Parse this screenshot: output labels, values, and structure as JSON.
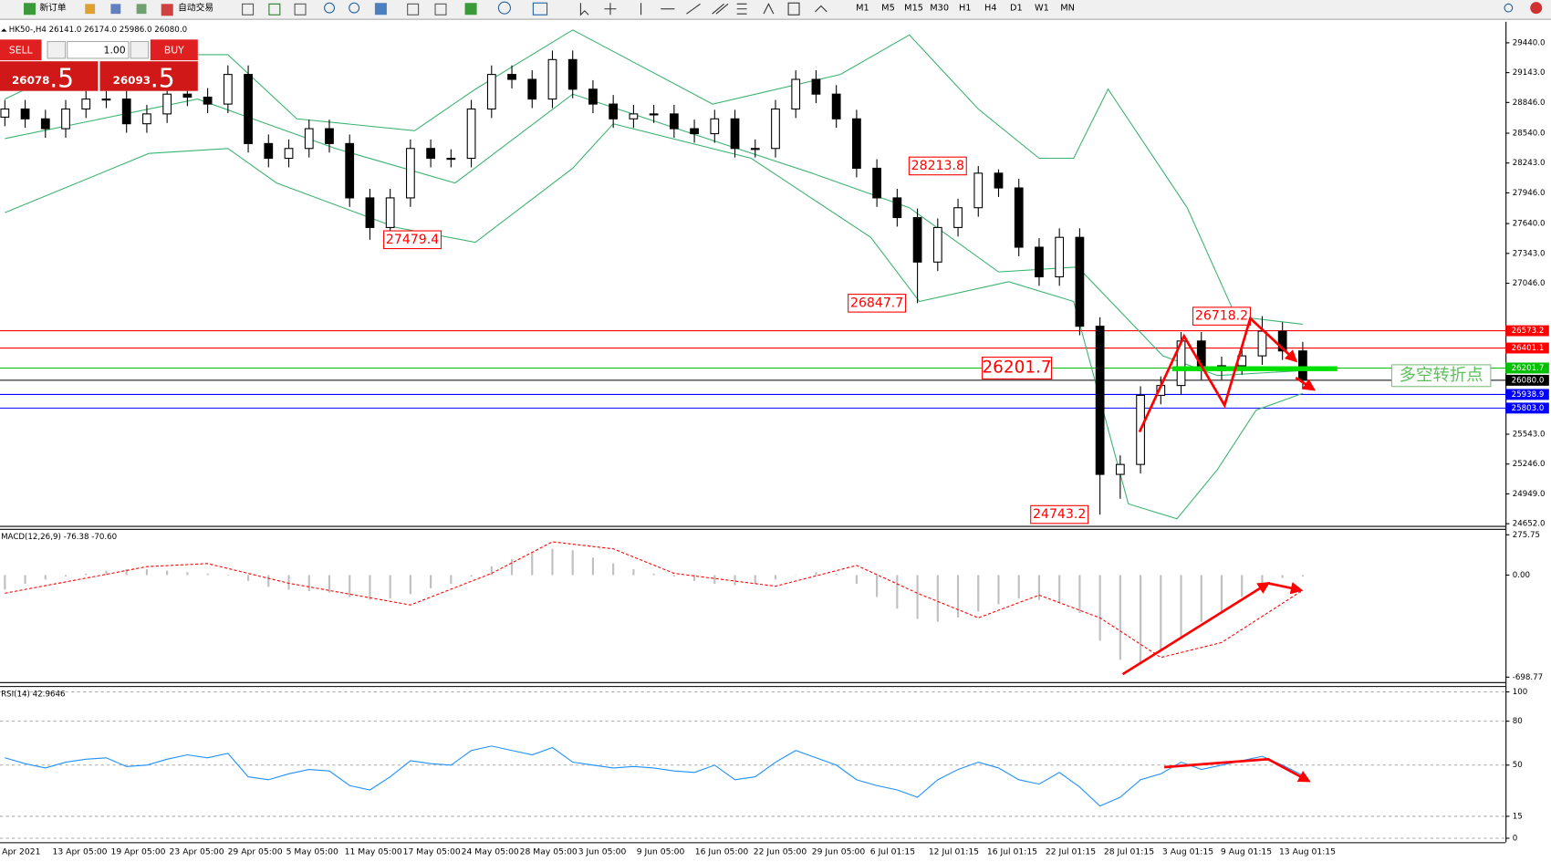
{
  "toolbar": {
    "new_order": "新订单",
    "auto_trading": "自动交易",
    "timeframes": [
      "M1",
      "M5",
      "M15",
      "M30",
      "H1",
      "H4",
      "D1",
      "W1",
      "MN"
    ]
  },
  "trade_panel": {
    "sell": "SELL",
    "lots": "1.00",
    "buy": "BUY",
    "sell_price": "26078",
    "sell_pips": ".5",
    "buy_price": "26093",
    "buy_pips": ".5"
  },
  "chart_data": [
    {
      "type": "candlestick",
      "title": "HK50-,H4  26141.0 26174.0 25986.0 26080.0",
      "up_color": "#ffffff",
      "down_color": "#000000",
      "open": [
        28700,
        28781,
        28683,
        28585,
        28781,
        28880,
        28880,
        28634,
        28732,
        28929,
        28899,
        28830,
        29125,
        28437,
        28290,
        28388,
        28585,
        28437,
        27896,
        27601,
        27896,
        28388,
        28290,
        28290,
        28781,
        29125,
        29076,
        28880,
        29273,
        28978,
        28830,
        28683,
        28732,
        28732,
        28585,
        28535,
        28683,
        28388,
        28388,
        28781,
        29076,
        28929,
        28683,
        28191,
        27896,
        27700,
        27257,
        27601,
        27798,
        28142,
        27995,
        27405,
        27110,
        27503,
        26618,
        25143,
        25242,
        25930,
        26028,
        26471,
        26176,
        26225,
        26323,
        26569,
        26372
      ],
      "high": [
        28871,
        28871,
        28773,
        28871,
        28970,
        28970,
        28970,
        28822,
        29019,
        29019,
        28989,
        29215,
        29215,
        28527,
        28478,
        28675,
        28675,
        28527,
        27986,
        27986,
        28478,
        28478,
        28380,
        28871,
        29215,
        29215,
        29166,
        29363,
        29363,
        29068,
        28920,
        28822,
        28822,
        28822,
        28675,
        28773,
        28773,
        28478,
        28871,
        29166,
        29166,
        29019,
        28773,
        28281,
        27986,
        27790,
        27691,
        27888,
        28213.8,
        28180,
        28085,
        27495,
        27593,
        27593,
        26708,
        25332,
        26020,
        26118,
        26561,
        26561,
        26315,
        26413,
        26718.2,
        26659,
        26462
      ],
      "low": [
        28610,
        28593,
        28495,
        28495,
        28691,
        28790,
        28544,
        28544,
        28642,
        28809,
        28740,
        28740,
        28347,
        28200,
        28200,
        28298,
        28347,
        27806,
        27479.4,
        27511,
        27806,
        28200,
        28200,
        28200,
        28691,
        28986,
        28790,
        28790,
        28888,
        28740,
        28593,
        28593,
        28642,
        28495,
        28445,
        28445,
        28298,
        28298,
        28298,
        28691,
        28839,
        28593,
        28101,
        27806,
        27610,
        26847.7,
        27167,
        27511,
        27708,
        27905,
        27315,
        27020,
        27020,
        26528,
        24743.2,
        24900,
        25152,
        25840,
        25938,
        26086,
        26086,
        26135,
        26233,
        26282,
        25990
      ],
      "close": [
        28781,
        28683,
        28585,
        28781,
        28880,
        28880,
        28634,
        28732,
        28929,
        28899,
        28830,
        29125,
        28437,
        28290,
        28388,
        28585,
        28437,
        27896,
        27601,
        27896,
        28388,
        28290,
        28290,
        28781,
        29125,
        29076,
        28880,
        29273,
        28978,
        28830,
        28683,
        28732,
        28732,
        28585,
        28535,
        28683,
        28388,
        28388,
        28781,
        29076,
        28929,
        28683,
        28191,
        27896,
        27700,
        27257,
        27601,
        27798,
        28142,
        27995,
        27405,
        27110,
        27503,
        26618,
        25143,
        25242,
        25930,
        26028,
        26471,
        26176,
        26225,
        26323,
        26569,
        26372,
        26080
      ],
      "overlays": [
        {
          "color": "#3cb371",
          "x": [
            0,
            4.6,
            11,
            14.4,
            20.2,
            23.2,
            28,
            34.9,
            41.2,
            44.6,
            48,
            51,
            52.7,
            54.4,
            58.3,
            60.7,
            64
          ],
          "values": [
            28880,
            29322,
            29322,
            28683,
            28565,
            28978,
            29568,
            28830,
            29125,
            29519,
            28781,
            28290,
            28290,
            28978,
            27798,
            26717,
            26638
          ]
        },
        {
          "color": "#3cb371",
          "x": [
            0,
            9.5,
            16.3,
            22.2,
            28,
            33.9,
            39.8,
            44.6,
            49,
            52.9,
            57.1,
            59.8,
            64
          ],
          "values": [
            28486,
            28880,
            28388,
            28044,
            28929,
            28535,
            28142,
            27798,
            27159,
            27208,
            26323,
            26127,
            26176
          ]
        },
        {
          "color": "#3cb371",
          "x": [
            0,
            7.1,
            11,
            13.4,
            19.3,
            23.2,
            28,
            30,
            36.8,
            42.7,
            45.1,
            49.5,
            52.7,
            55.4,
            57.8,
            59.8,
            61.7,
            64
          ],
          "values": [
            27749,
            28339,
            28388,
            28044,
            27601,
            27454,
            28191,
            28634,
            28290,
            27503,
            26864,
            27061,
            26864,
            24849,
            24701,
            25193,
            25783,
            25950
          ]
        }
      ],
      "levels": [
        {
          "value": 26573.2,
          "color": "#ff0000"
        },
        {
          "value": 26401.1,
          "color": "#ff0000"
        },
        {
          "value": 26201.7,
          "color": "#00c000"
        },
        {
          "value": 26080.0,
          "label": "26080.0",
          "color": "#000000"
        },
        {
          "value": 25938.9,
          "color": "#0000ff"
        },
        {
          "value": 25803.0,
          "label": "25803.0",
          "color": "#0000ff"
        }
      ],
      "annotations": [
        27479.4,
        28213.8,
        26847.7,
        26718.2,
        24743.2
      ],
      "callouts": [
        26201.7
      ],
      "note": "多空转折点",
      "xlim": [
        -0.24,
        73.9
      ],
      "ylim": [
        24630,
        29630
      ],
      "yticks": [
        {
          "value": 29440,
          "label": "29440.0"
        },
        {
          "value": 29143,
          "label": "29143.0"
        },
        {
          "value": 28846,
          "label": "28846.0"
        },
        {
          "value": 28540,
          "label": "28540.0"
        },
        {
          "value": 28243,
          "label": "28243.0"
        },
        {
          "value": 27946,
          "label": "27946.0"
        },
        {
          "value": 27640,
          "label": "27640.0"
        },
        {
          "value": 27343,
          "label": "27343.0"
        },
        {
          "value": 27046,
          "label": "27046.0"
        },
        {
          "value": 25543,
          "label": "25543.0"
        },
        {
          "value": 25246,
          "label": "25246.0"
        },
        {
          "value": 24949,
          "label": "24949.0"
        },
        {
          "value": 24652,
          "label": "24652.0"
        }
      ]
    },
    {
      "type": "macd",
      "title": "MACD(12,26,9) -76.38 -70.60",
      "color": "#c0c0c0",
      "values": [
        -100,
        -60,
        -30,
        -10,
        10,
        30,
        40,
        40,
        30,
        20,
        10,
        0,
        -40,
        -80,
        -100,
        -110,
        -120,
        -150,
        -170,
        -160,
        -130,
        -90,
        -60,
        -10,
        60,
        110,
        150,
        180,
        170,
        120,
        80,
        40,
        10,
        -10,
        -40,
        -60,
        -70,
        -60,
        -30,
        0,
        20,
        10,
        -60,
        -150,
        -230,
        -300,
        -320,
        -290,
        -250,
        -200,
        -160,
        -170,
        -190,
        -260,
        -450,
        -580,
        -600,
        -520,
        -420,
        -320,
        -250,
        -150,
        -60,
        -20,
        -10
      ],
      "signal": {
        "color": "#ff0000",
        "x": [
          0,
          5,
          7,
          10,
          14,
          20,
          24,
          27,
          30,
          33,
          38,
          42,
          45,
          48,
          51,
          54,
          57,
          60,
          64
        ],
        "values": [
          -124,
          5,
          58,
          79,
          -56,
          -205,
          12,
          228,
          180,
          12,
          -76,
          66,
          -124,
          -293,
          -137,
          -293,
          -564,
          -462,
          -104
        ]
      },
      "xlim": [
        -0.24,
        73.9
      ],
      "ylim": [
        -732.6,
        316.4
      ],
      "yticks": [
        275.75,
        {
          "value": 0,
          "label": "0.00"
        },
        -698.77
      ]
    },
    {
      "type": "line",
      "title": "RSI(14) 42.9646",
      "color": "#1e90ff",
      "values": [
        55,
        51,
        48,
        52,
        54,
        55,
        49,
        50,
        54,
        57,
        55,
        58,
        42,
        40,
        44,
        47,
        46,
        36,
        33,
        42,
        53,
        51,
        50,
        60,
        63,
        60,
        57,
        62,
        52,
        50,
        48,
        49,
        48,
        46,
        45,
        50,
        40,
        42,
        52,
        60,
        55,
        50,
        40,
        36,
        33,
        28,
        40,
        47,
        52,
        48,
        40,
        37,
        45,
        35,
        22,
        28,
        40,
        44,
        52,
        47,
        50,
        53,
        56,
        50,
        43
      ],
      "xlim": [
        -0.24,
        73.9
      ],
      "ylim": [
        -2.7,
        104
      ],
      "yticks": [
        100,
        80,
        50,
        15,
        0
      ],
      "grid": true
    }
  ],
  "time_axis": [
    "Apr 2021",
    "13 Apr 05:00",
    "19 Apr 05:00",
    "23 Apr 05:00",
    "29 Apr 05:00",
    "5 May 05:00",
    "11 May 05:00",
    "17 May 05:00",
    "24 May 05:00",
    "28 May 05:00",
    "3 Jun 05:00",
    "9 Jun 05:00",
    "16 Jun 05:00",
    "22 Jun 05:00",
    "29 Jun 05:00",
    "6 Jul 01:15",
    "12 Jul 01:15",
    "16 Jul 01:15",
    "22 Jul 01:15",
    "28 Jul 01:15",
    "3 Aug 01:15",
    "9 Aug 01:15",
    "13 Aug 01:15"
  ]
}
